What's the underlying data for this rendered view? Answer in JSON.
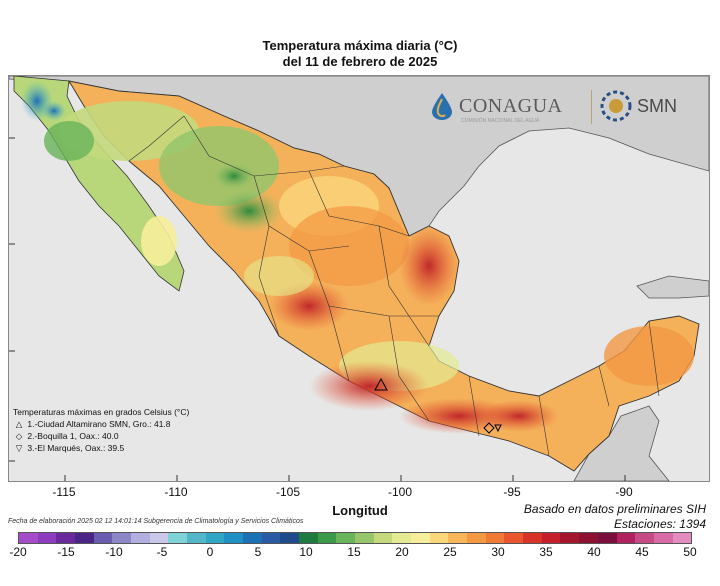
{
  "title": {
    "line1": "Temperatura máxima diaria (°C)",
    "line2": "del 11 de febrero de 2025"
  },
  "logos": {
    "conagua": "CONAGUA",
    "smn": "SMN",
    "conagua_sub": "COMISIÓN NACIONAL DEL AGUA"
  },
  "x_axis": {
    "label": "Longitud",
    "ticks": [
      "-115",
      "-110",
      "-105",
      "-100",
      "-95",
      "-90"
    ]
  },
  "legend": {
    "title": "Temperaturas máximas en grados Celsius (°C)",
    "stations": [
      {
        "symbol": "△",
        "text": "1.-Ciudad Altamirano SMN, Gro.: 41.8"
      },
      {
        "symbol": "◇",
        "text": "2.-Boquilla 1, Oax.: 40.0"
      },
      {
        "symbol": "▽",
        "text": "3.-El Marqués, Oax.: 39.5"
      }
    ]
  },
  "info": {
    "source": "Basado en datos preliminares SIH",
    "stations": "Estaciones:  1394",
    "elaboration": "Fecha de elaboración 2025 02 12 14:01:14 Subgerencia de Climatología y Servicios Climáticos"
  },
  "colorbar": {
    "labels": [
      "-20",
      "-15",
      "-10",
      "-5",
      "0",
      "5",
      "10",
      "15",
      "20",
      "25",
      "30",
      "35",
      "40",
      "45",
      "50"
    ],
    "colors": [
      "#a64bc9",
      "#8d3cbf",
      "#6a2a9d",
      "#4b2487",
      "#6a5db0",
      "#8c85c6",
      "#b2aee0",
      "#c9c8e9",
      "#7fd3d8",
      "#52b8c9",
      "#2fa7c4",
      "#1f8fc6",
      "#1c70b6",
      "#2a5aa3",
      "#1f4b8a",
      "#1f7a3f",
      "#3a9a4a",
      "#69b35a",
      "#97c56b",
      "#c3d97c",
      "#e4ea90",
      "#f6ee9a",
      "#fbd67a",
      "#f8b65a",
      "#f39843",
      "#ef7a36",
      "#e9552d",
      "#d93327",
      "#c41f2a",
      "#a5162c",
      "#8c1030",
      "#7a0f3e",
      "#b0215f",
      "#c64a86",
      "#d86aa6",
      "#e28cc0"
    ]
  },
  "colors": {
    "ocean": "#e7e7e7",
    "border": "#333333"
  }
}
